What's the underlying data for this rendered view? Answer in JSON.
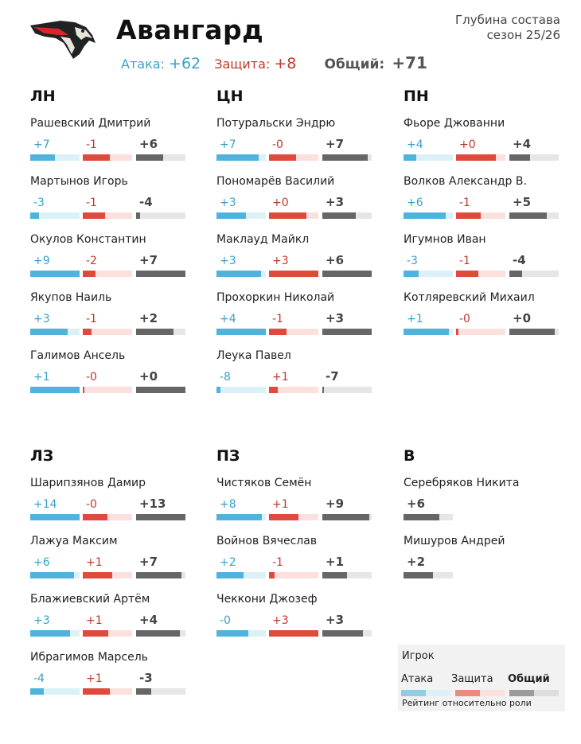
{
  "header": {
    "team_name": "Авангард",
    "subtitle_line1": "Глубина состава",
    "subtitle_line2": "сезон 25/26",
    "attack_label": "Атака:",
    "attack_total": "+62",
    "defense_label": "Защита:",
    "defense_total": "+8",
    "overall_label": "Общий:",
    "overall_total": "+71"
  },
  "groups": [
    {
      "title": "ЛН",
      "players": [
        {
          "name": "Рашевский Дмитрий",
          "attack": "+7",
          "defense": "-1",
          "overall": "+6",
          "attack_fill": 0.5,
          "defense_fill": 0.55,
          "overall_fill": 0.55
        },
        {
          "name": "Мартынов Игорь",
          "attack": "-3",
          "defense": "-1",
          "overall": "-4",
          "attack_fill": 0.18,
          "defense_fill": 0.45,
          "overall_fill": 0.08
        },
        {
          "name": "Окулов Константин",
          "attack": "+9",
          "defense": "-2",
          "overall": "+7",
          "attack_fill": 1.0,
          "defense_fill": 0.25,
          "overall_fill": 1.0
        },
        {
          "name": "Якупов Наиль",
          "attack": "+3",
          "defense": "-1",
          "overall": "+2",
          "attack_fill": 0.75,
          "defense_fill": 0.18,
          "overall_fill": 0.75
        },
        {
          "name": "Галимов Ансель",
          "attack": "+1",
          "defense": "-0",
          "overall": "+0",
          "attack_fill": 1.0,
          "defense_fill": 0.03,
          "overall_fill": 1.0
        }
      ]
    },
    {
      "title": "ЦН",
      "players": [
        {
          "name": "Потуральски Эндрю",
          "attack": "+7",
          "defense": "-0",
          "overall": "+7",
          "attack_fill": 0.85,
          "defense_fill": 0.55,
          "overall_fill": 0.92
        },
        {
          "name": "Пономарёв Василий",
          "attack": "+3",
          "defense": "+0",
          "overall": "+3",
          "attack_fill": 0.6,
          "defense_fill": 0.75,
          "overall_fill": 0.68
        },
        {
          "name": "Маклауд Майкл",
          "attack": "+3",
          "defense": "+3",
          "overall": "+6",
          "attack_fill": 0.9,
          "defense_fill": 1.0,
          "overall_fill": 1.0
        },
        {
          "name": "Прохоркин Николай",
          "attack": "+4",
          "defense": "-1",
          "overall": "+3",
          "attack_fill": 1.0,
          "defense_fill": 0.35,
          "overall_fill": 1.0
        },
        {
          "name": "Леука Павел",
          "attack": "-8",
          "defense": "+1",
          "overall": "-7",
          "attack_fill": 0.08,
          "defense_fill": 0.18,
          "overall_fill": 0.03
        }
      ]
    },
    {
      "title": "ПН",
      "players": [
        {
          "name": "Фьоре Джованни",
          "attack": "+4",
          "defense": "+0",
          "overall": "+4",
          "attack_fill": 0.25,
          "defense_fill": 0.8,
          "overall_fill": 0.42
        },
        {
          "name": "Волков Александр В.",
          "attack": "+6",
          "defense": "-1",
          "overall": "+5",
          "attack_fill": 0.85,
          "defense_fill": 0.5,
          "overall_fill": 0.75
        },
        {
          "name": "Игумнов Иван",
          "attack": "-3",
          "defense": "-1",
          "overall": "-4",
          "attack_fill": 0.3,
          "defense_fill": 0.45,
          "overall_fill": 0.25
        },
        {
          "name": "Котляревский Михаил",
          "attack": "+1",
          "defense": "-0",
          "overall": "+0",
          "attack_fill": 0.92,
          "defense_fill": 0.05,
          "overall_fill": 0.92
        }
      ]
    },
    {
      "title": "ЛЗ",
      "players": [
        {
          "name": "Шарипзянов Дамир",
          "attack": "+14",
          "defense": "-0",
          "overall": "+13",
          "attack_fill": 1.0,
          "defense_fill": 0.5,
          "overall_fill": 1.0
        },
        {
          "name": "Лажуа Максим",
          "attack": "+6",
          "defense": "+1",
          "overall": "+7",
          "attack_fill": 0.88,
          "defense_fill": 0.6,
          "overall_fill": 0.92
        },
        {
          "name": "Блажиевский Артём",
          "attack": "+3",
          "defense": "+1",
          "overall": "+4",
          "attack_fill": 0.8,
          "defense_fill": 0.52,
          "overall_fill": 0.88
        },
        {
          "name": "Ибрагимов Марсель",
          "attack": "-4",
          "defense": "+1",
          "overall": "-3",
          "attack_fill": 0.28,
          "defense_fill": 0.55,
          "overall_fill": 0.3
        }
      ]
    },
    {
      "title": "ПЗ",
      "players": [
        {
          "name": "Чистяков Семён",
          "attack": "+8",
          "defense": "+1",
          "overall": "+9",
          "attack_fill": 0.92,
          "defense_fill": 0.6,
          "overall_fill": 0.95
        },
        {
          "name": "Войнов Вячеслав",
          "attack": "+2",
          "defense": "-1",
          "overall": "+1",
          "attack_fill": 0.55,
          "defense_fill": 0.12,
          "overall_fill": 0.5
        },
        {
          "name": "Чеккони Джозеф",
          "attack": "-0",
          "defense": "+3",
          "overall": "+3",
          "attack_fill": 0.65,
          "defense_fill": 1.0,
          "overall_fill": 0.82
        }
      ]
    },
    {
      "title": "В",
      "goalies": true,
      "players": [
        {
          "name": "Серебряков Никита",
          "overall": "+6",
          "overall_fill": 0.72
        },
        {
          "name": "Мишуров Андрей",
          "overall": "+2",
          "overall_fill": 0.6
        }
      ]
    }
  ],
  "legend": {
    "title": "Игрок",
    "attack_label": "Атака",
    "defense_label": "Защита",
    "overall_label": "Общий",
    "note": "Рейтинг относительно роли",
    "attack_fill": 0.5,
    "defense_fill": 0.5,
    "overall_fill": 0.5
  }
}
